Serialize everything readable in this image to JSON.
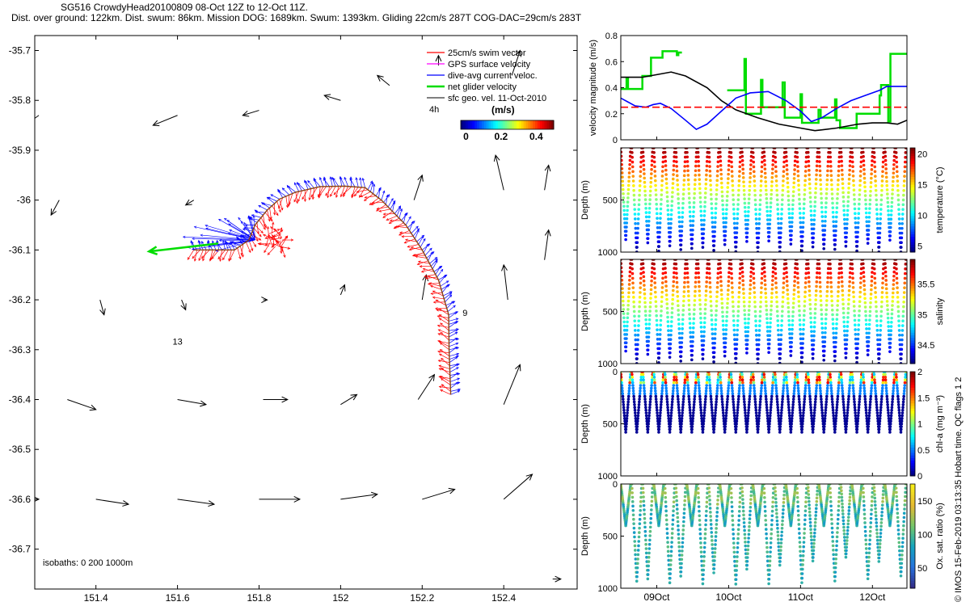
{
  "title_line1": "SG516 CrowdyHead20100809 08-Oct 12Z to 12-Oct 11Z.",
  "title_line2": "Dist. over ground: 122km. Dist. swum: 86km. Mission DOG: 1689km. Swum: 1393km. Gliding 22cm/s 287T COG-DAC=29cm/s 283T",
  "side_label": "© IMOS 15-Feb-2019 03:13:35 Hobart time. QC flags 1  2",
  "colors": {
    "swim": "#ff0000",
    "gps": "#ff00ff",
    "dac": "#0000ff",
    "net": "#00dd00",
    "geo": "#000000",
    "track": "#8b4513"
  },
  "chart_data": [
    {
      "type": "map",
      "xlim": [
        151.25,
        152.58
      ],
      "ylim": [
        -36.78,
        -35.67
      ],
      "x_ticks": [
        "151.4",
        "151.6",
        "151.8",
        "152",
        "152.2",
        "152.4"
      ],
      "x_tick_values": [
        151.4,
        151.6,
        151.8,
        152.0,
        152.2,
        152.4
      ],
      "y_ticks": [
        "-35.7",
        "-35.8",
        "-35.9",
        "-36",
        "-36.1",
        "-36.2",
        "-36.3",
        "-36.4",
        "-36.5",
        "-36.6",
        "-36.7"
      ],
      "y_tick_values": [
        -35.7,
        -35.8,
        -35.9,
        -36.0,
        -36.1,
        -36.2,
        -36.3,
        -36.4,
        -36.5,
        -36.6,
        -36.7
      ],
      "legend": [
        {
          "label": "25cm/s swim vector",
          "color": "#ff0000"
        },
        {
          "label": "GPS surface velocity",
          "color": "#ff00ff"
        },
        {
          "label": "dive-avg current veloc.",
          "color": "#0000ff"
        },
        {
          "label": "net glider velocity",
          "color": "#00dd00"
        },
        {
          "label": "sfc geo. vel. 11-Oct-2010",
          "color": "#000000"
        }
      ],
      "legend_extra": "4h",
      "colorbar": {
        "label": "(m/s)",
        "ticks": [
          "0",
          "0.2",
          "0.4"
        ],
        "tick_values": [
          0,
          0.2,
          0.4
        ],
        "range": [
          -0.03,
          0.5
        ]
      },
      "isobaths": "isobaths: 0   200   1000m",
      "annotations": [
        {
          "text": "13",
          "lon": 151.6,
          "lat": -36.29
        },
        {
          "text": "9",
          "lon": 152.305,
          "lat": -36.232
        }
      ],
      "track": [
        [
          152.27,
          -36.39
        ],
        [
          152.266,
          -36.3
        ],
        [
          152.265,
          -36.23
        ],
        [
          152.24,
          -36.16
        ],
        [
          152.2,
          -36.1
        ],
        [
          152.16,
          -36.05
        ],
        [
          152.1,
          -36.0
        ],
        [
          152.06,
          -35.975
        ],
        [
          152.01,
          -35.972
        ],
        [
          151.95,
          -35.973
        ],
        [
          151.89,
          -35.984
        ],
        [
          151.85,
          -35.998
        ],
        [
          151.82,
          -36.02
        ],
        [
          151.79,
          -36.05
        ],
        [
          151.775,
          -36.08
        ],
        [
          151.74,
          -36.1
        ],
        [
          151.64,
          -36.1
        ]
      ],
      "net_velocity": {
        "lon": 151.7,
        "lat": -36.087,
        "dlon": -0.17,
        "dlat": -0.016
      },
      "geo_vectors": [
        [
          151.26,
          -35.83,
          -0.05,
          -0.03
        ],
        [
          151.6,
          -35.83,
          -0.06,
          -0.02
        ],
        [
          151.8,
          -35.82,
          -0.04,
          -0.01
        ],
        [
          152.0,
          -35.8,
          -0.04,
          0.01
        ],
        [
          152.12,
          -35.77,
          -0.03,
          0.02
        ],
        [
          152.24,
          -35.73,
          0.0,
          0.02
        ],
        [
          152.42,
          -35.75,
          0.02,
          0.05
        ],
        [
          151.31,
          -36.0,
          -0.02,
          -0.03
        ],
        [
          151.64,
          -36.0,
          -0.02,
          -0.01
        ],
        [
          152.18,
          -36.0,
          0.02,
          0.05
        ],
        [
          152.4,
          -35.98,
          -0.02,
          0.07
        ],
        [
          152.5,
          -35.98,
          0.01,
          0.05
        ],
        [
          151.41,
          -36.2,
          0.01,
          -0.03
        ],
        [
          151.61,
          -36.2,
          0.01,
          -0.02
        ],
        [
          151.81,
          -36.2,
          0.01,
          0.0
        ],
        [
          152.0,
          -36.19,
          0.01,
          0.02
        ],
        [
          152.2,
          -36.2,
          0.01,
          0.05
        ],
        [
          152.41,
          -36.2,
          -0.01,
          0.07
        ],
        [
          152.5,
          -36.12,
          0.01,
          0.06
        ],
        [
          151.33,
          -36.4,
          0.07,
          -0.02
        ],
        [
          151.6,
          -36.4,
          0.07,
          -0.01
        ],
        [
          151.81,
          -36.4,
          0.06,
          0.0
        ],
        [
          152.0,
          -36.41,
          0.04,
          0.02
        ],
        [
          152.19,
          -36.4,
          0.04,
          0.05
        ],
        [
          152.4,
          -36.41,
          0.04,
          0.08
        ],
        [
          151.25,
          -36.6,
          0.01,
          0.0
        ],
        [
          151.4,
          -36.6,
          0.08,
          -0.01
        ],
        [
          151.6,
          -36.6,
          0.09,
          -0.01
        ],
        [
          151.8,
          -36.6,
          0.1,
          0.0
        ],
        [
          152.0,
          -36.6,
          0.09,
          0.01
        ],
        [
          152.2,
          -36.6,
          0.08,
          0.02
        ],
        [
          152.4,
          -36.6,
          0.07,
          0.05
        ],
        [
          152.52,
          -36.76,
          0.02,
          0.0
        ]
      ]
    },
    {
      "type": "line",
      "ylabel": "velocity magnitude (m/s)",
      "ylim": [
        0,
        0.8
      ],
      "y_ticks": [
        "0",
        "0.2",
        "0.4",
        "0.6",
        "0.8"
      ],
      "y_tick_values": [
        0,
        0.2,
        0.4,
        0.6,
        0.8
      ],
      "xlim": [
        8.5,
        12.48
      ],
      "series": [
        {
          "color": "#00dd00",
          "points": [
            [
              8.5,
              0.39
            ],
            [
              8.58,
              0.39
            ],
            [
              8.58,
              0.47
            ],
            [
              8.6,
              0.47
            ],
            [
              8.6,
              0.39
            ],
            [
              8.8,
              0.39
            ],
            [
              8.8,
              0.49
            ],
            [
              8.92,
              0.49
            ],
            [
              8.92,
              0.63
            ],
            [
              9.08,
              0.63
            ],
            [
              9.08,
              0.68
            ],
            [
              9.28,
              0.68
            ],
            [
              9.28,
              0.65
            ],
            [
              9.3,
              0.65
            ],
            [
              9.3,
              0.67
            ],
            [
              9.35,
              0.67
            ]
          ]
        },
        {
          "color": "#00dd00",
          "points": [
            [
              9.98,
              0.38
            ],
            [
              10.22,
              0.38
            ],
            [
              10.22,
              0.62
            ],
            [
              10.24,
              0.62
            ],
            [
              10.24,
              0.2
            ],
            [
              10.45,
              0.2
            ],
            [
              10.45,
              0.46
            ],
            [
              10.47,
              0.46
            ],
            [
              10.47,
              0.25
            ],
            [
              10.75,
              0.25
            ],
            [
              10.75,
              0.44
            ],
            [
              10.78,
              0.44
            ],
            [
              10.78,
              0.17
            ],
            [
              11.0,
              0.17
            ],
            [
              11.0,
              0.35
            ],
            [
              11.02,
              0.35
            ],
            [
              11.02,
              0.13
            ],
            [
              11.25,
              0.13
            ],
            [
              11.25,
              0.23
            ],
            [
              11.28,
              0.23
            ],
            [
              11.28,
              0.17
            ],
            [
              11.48,
              0.17
            ],
            [
              11.48,
              0.31
            ],
            [
              11.5,
              0.31
            ],
            [
              11.5,
              0.15
            ],
            [
              11.55,
              0.15
            ],
            [
              11.55,
              0.09
            ],
            [
              11.78,
              0.09
            ],
            [
              11.78,
              0.2
            ],
            [
              12.1,
              0.2
            ],
            [
              12.1,
              0.34
            ],
            [
              12.12,
              0.34
            ],
            [
              12.12,
              0.42
            ],
            [
              12.22,
              0.42
            ],
            [
              12.22,
              0.14
            ],
            [
              12.25,
              0.14
            ],
            [
              12.25,
              0.66
            ],
            [
              12.48,
              0.66
            ]
          ]
        },
        {
          "color": "#000000",
          "points": [
            [
              8.5,
              0.48
            ],
            [
              8.8,
              0.48
            ],
            [
              9.0,
              0.5
            ],
            [
              9.2,
              0.52
            ],
            [
              9.4,
              0.49
            ],
            [
              9.7,
              0.4
            ],
            [
              9.9,
              0.3
            ],
            [
              10.1,
              0.23
            ],
            [
              10.4,
              0.17
            ],
            [
              10.7,
              0.12
            ],
            [
              11.0,
              0.09
            ],
            [
              11.2,
              0.07
            ],
            [
              11.5,
              0.09
            ],
            [
              11.8,
              0.12
            ],
            [
              12.0,
              0.13
            ],
            [
              12.2,
              0.13
            ],
            [
              12.35,
              0.12
            ],
            [
              12.48,
              0.15
            ]
          ]
        },
        {
          "color": "#0000ff",
          "points": [
            [
              8.5,
              0.32
            ],
            [
              8.6,
              0.29
            ],
            [
              8.7,
              0.26
            ],
            [
              8.85,
              0.25
            ],
            [
              8.95,
              0.27
            ],
            [
              9.05,
              0.28
            ],
            [
              9.2,
              0.24
            ],
            [
              9.4,
              0.15
            ],
            [
              9.55,
              0.08
            ],
            [
              9.7,
              0.12
            ],
            [
              9.9,
              0.22
            ],
            [
              10.1,
              0.32
            ],
            [
              10.3,
              0.36
            ],
            [
              10.55,
              0.37
            ],
            [
              10.8,
              0.3
            ],
            [
              11.0,
              0.22
            ],
            [
              11.15,
              0.14
            ],
            [
              11.3,
              0.17
            ],
            [
              11.5,
              0.24
            ],
            [
              11.7,
              0.3
            ],
            [
              11.9,
              0.34
            ],
            [
              12.1,
              0.38
            ],
            [
              12.2,
              0.41
            ],
            [
              12.48,
              0.41
            ]
          ]
        }
      ],
      "reference_line": {
        "value": 0.25,
        "color": "#ff0000"
      }
    },
    {
      "type": "heatmap",
      "ylabel": "Depth (m)",
      "ylim": [
        0,
        1000
      ],
      "y_ticks": [
        "500",
        "1000"
      ],
      "y_tick_values": [
        500,
        1000
      ],
      "colorbar": {
        "label": "temperature (°C)",
        "range": [
          4,
          21
        ],
        "ticks": [
          "5",
          "10",
          "15",
          "20"
        ],
        "tick_values": [
          5,
          10,
          15,
          20
        ]
      },
      "profile": {
        "dives": 26,
        "max_depth": 1000,
        "min_depth": 0
      }
    },
    {
      "type": "heatmap",
      "ylabel": "Depth (m)",
      "ylim": [
        0,
        1000
      ],
      "y_ticks": [
        "500",
        "1000"
      ],
      "y_tick_values": [
        500,
        1000
      ],
      "colorbar": {
        "label": "salinity",
        "range": [
          34.2,
          35.9
        ],
        "ticks": [
          "34.5",
          "35",
          "35.5"
        ],
        "tick_values": [
          34.5,
          35,
          35.5
        ]
      },
      "profile": {
        "dives": 26,
        "max_depth": 1000,
        "min_depth": 0
      }
    },
    {
      "type": "heatmap",
      "ylabel": "Depth (m)",
      "ylim": [
        0,
        1000
      ],
      "y_ticks": [
        "0",
        "500",
        "1000"
      ],
      "y_tick_values": [
        0,
        500,
        1000
      ],
      "colorbar": {
        "label": "chl-a (mg m⁻³)",
        "range": [
          0,
          2
        ],
        "ticks": [
          "0",
          "0.5",
          "1",
          "1.5",
          "2"
        ],
        "tick_values": [
          0,
          0.5,
          1,
          1.5,
          2
        ]
      },
      "profile": {
        "dives": 26,
        "max_depth": 580,
        "min_depth": 0
      }
    },
    {
      "type": "heatmap",
      "ylabel": "Depth (m)",
      "ylim": [
        0,
        1000
      ],
      "y_ticks": [
        "0",
        "500",
        "1000"
      ],
      "y_tick_values": [
        0,
        500,
        1000
      ],
      "colorbar": {
        "label": "Ox. sat. ratio (%)",
        "range": [
          20,
          175
        ],
        "ticks": [
          "50",
          "100",
          "150"
        ],
        "tick_values": [
          50,
          100,
          150
        ]
      },
      "profile": {
        "dives": 26,
        "max_depth": 980,
        "min_depth": 0
      }
    }
  ],
  "time_axis": {
    "ticks": [
      "09Oct",
      "10Oct",
      "11Oct",
      "12Oct"
    ],
    "tick_values": [
      9.0,
      10.0,
      11.0,
      12.0
    ]
  }
}
